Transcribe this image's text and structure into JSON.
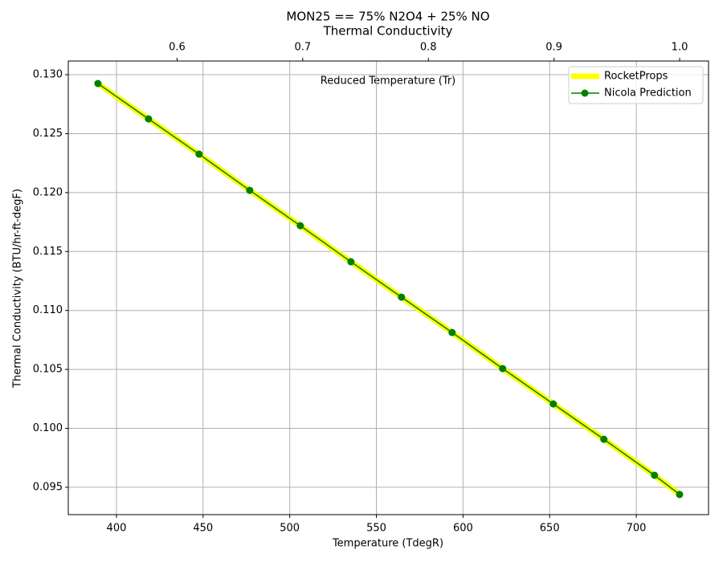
{
  "chart_data": {
    "type": "line",
    "title": "MON25 == 75% N2O4 + 25% NO",
    "subtitle": "Thermal Conductivity",
    "xlabel": "Temperature (TdegR)",
    "ylabel": "Thermal Conductivity (BTU/hr-ft-degF)",
    "x2label": "Reduced Temperature (Tr)",
    "x": [
      389.3,
      418.5,
      447.7,
      476.9,
      506.1,
      535.3,
      564.5,
      593.7,
      622.9,
      652.1,
      681.3,
      710.5,
      725
    ],
    "series": [
      {
        "name": "RocketProps",
        "color": "#ffff00",
        "linewidth": 7,
        "marker": false,
        "values": [
          0.12925,
          0.12625,
          0.12326,
          0.12019,
          0.11719,
          0.11413,
          0.11113,
          0.10813,
          0.10507,
          0.10207,
          0.09907,
          0.09602,
          0.09439
        ]
      },
      {
        "name": "Nicola Prediction",
        "color": "#008000",
        "linewidth": 1.5,
        "marker": true,
        "values": [
          0.12925,
          0.12625,
          0.12326,
          0.12019,
          0.11719,
          0.11413,
          0.11113,
          0.10813,
          0.10507,
          0.10207,
          0.09907,
          0.09602,
          0.09439
        ]
      }
    ],
    "xlim": [
      372.2,
      741.7
    ],
    "xticks": [
      400,
      450,
      500,
      550,
      600,
      650,
      700
    ],
    "x2lim": [
      0.5134,
      1.023
    ],
    "x2ticks": [
      0.6,
      0.7,
      0.8,
      0.9,
      {
        "value": 1.0,
        "label": "1.0"
      }
    ],
    "ylim": [
      0.09268,
      0.13116
    ],
    "yticks": [
      0.095,
      {
        "value": 0.1,
        "label": "0.100"
      },
      0.105,
      {
        "value": 0.11,
        "label": "0.110"
      },
      0.115,
      {
        "value": 0.12,
        "label": "0.120"
      },
      0.125,
      {
        "value": 0.13,
        "label": "0.130"
      }
    ],
    "grid": true,
    "legend": "upper-right"
  }
}
